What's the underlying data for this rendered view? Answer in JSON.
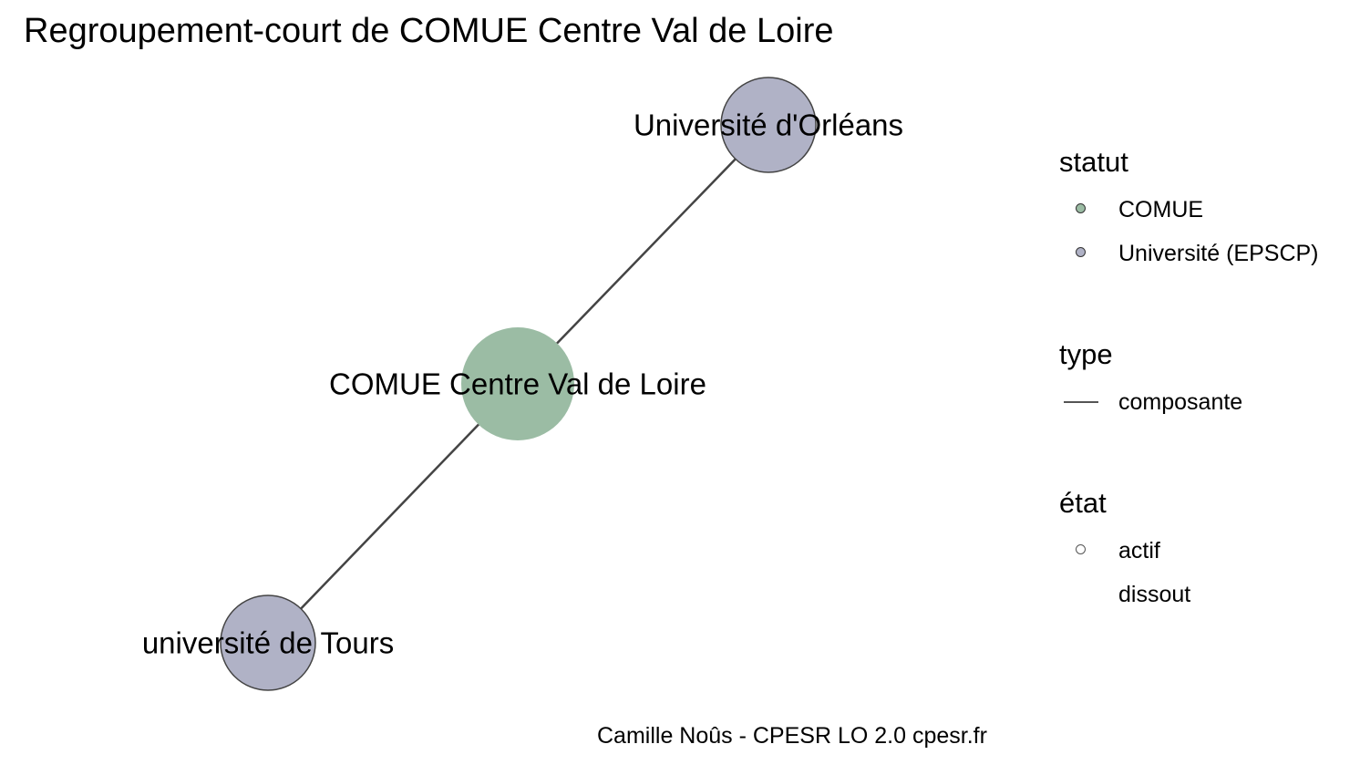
{
  "title": "Regroupement-court de COMUE Centre Val de Loire",
  "colors": {
    "comue": "#9bbca4",
    "universite": "#b0b2c6",
    "edge": "#444444",
    "node_border": "#444444"
  },
  "nodes": [
    {
      "id": "comue",
      "label": "COMUE Centre Val de Loire",
      "statut": "COMUE",
      "etat": "actif"
    },
    {
      "id": "orleans",
      "label": "Université d'Orléans",
      "statut": "Université (EPSCP)",
      "etat": "actif"
    },
    {
      "id": "tours",
      "label": "université de Tours",
      "statut": "Université (EPSCP)",
      "etat": "actif"
    }
  ],
  "edges": [
    {
      "from": "comue",
      "to": "orleans",
      "type": "composante"
    },
    {
      "from": "comue",
      "to": "tours",
      "type": "composante"
    }
  ],
  "legend": {
    "statut": {
      "title": "statut",
      "items": [
        {
          "label": "COMUE",
          "color": "#9bbca4"
        },
        {
          "label": "Université (EPSCP)",
          "color": "#b0b2c6"
        }
      ]
    },
    "type": {
      "title": "type",
      "items": [
        {
          "label": "composante",
          "color": "#555555"
        }
      ]
    },
    "etat": {
      "title": "état",
      "items": [
        {
          "label": "actif",
          "marker": "open-circle"
        },
        {
          "label": "dissout",
          "marker": "none"
        }
      ]
    }
  },
  "caption": "Camille Noûs - CPESR LO 2.0 cpesr.fr"
}
